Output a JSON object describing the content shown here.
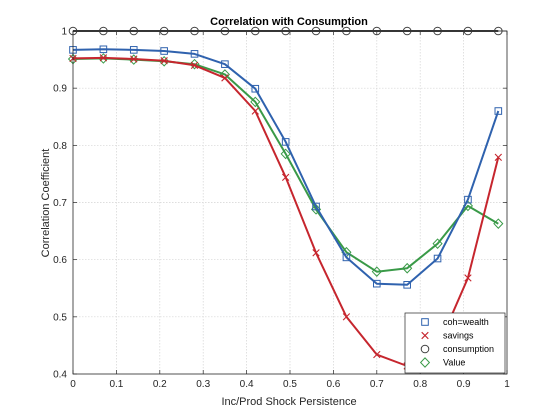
{
  "chart_data": {
    "type": "line",
    "title": "Correlation with Consumption",
    "xlabel": "Inc/Prod Shock Persistence",
    "ylabel": "Correlation Coefficient",
    "xlim": [
      0,
      1
    ],
    "ylim": [
      0.4,
      1
    ],
    "xticks": [
      "0",
      "0.1",
      "0.2",
      "0.3",
      "0.4",
      "0.5",
      "0.6",
      "0.7",
      "0.8",
      "0.9",
      "1"
    ],
    "yticks": [
      "0.4",
      "0.5",
      "0.6",
      "0.7",
      "0.8",
      "0.9",
      "1"
    ],
    "grid": true,
    "legend_position": "bottom-right",
    "x": [
      0.0,
      0.07,
      0.14,
      0.21,
      0.28,
      0.35,
      0.42,
      0.49,
      0.56,
      0.63,
      0.7,
      0.77,
      0.84,
      0.91,
      0.98
    ],
    "series": [
      {
        "name": "coh=wealth",
        "color": "#2F62AE",
        "marker": "square",
        "values": [
          0.967,
          0.968,
          0.967,
          0.965,
          0.96,
          0.942,
          0.899,
          0.806,
          0.693,
          0.604,
          0.558,
          0.556,
          0.602,
          0.705,
          0.86
        ]
      },
      {
        "name": "savings",
        "color": "#C6262E",
        "marker": "x",
        "values": [
          0.952,
          0.953,
          0.951,
          0.948,
          0.94,
          0.918,
          0.86,
          0.744,
          0.612,
          0.5,
          0.434,
          0.414,
          0.446,
          0.568,
          0.779
        ]
      },
      {
        "name": "consumption",
        "color": "#404040",
        "marker": "circle",
        "values": [
          1,
          1,
          1,
          1,
          1,
          1,
          1,
          1,
          1,
          1,
          1,
          1,
          1,
          1,
          1
        ]
      },
      {
        "name": "Value",
        "color": "#3A9A48",
        "marker": "diamond",
        "values": [
          0.951,
          0.952,
          0.95,
          0.947,
          0.942,
          0.924,
          0.876,
          0.785,
          0.688,
          0.613,
          0.579,
          0.585,
          0.628,
          0.694,
          0.663
        ]
      }
    ]
  }
}
